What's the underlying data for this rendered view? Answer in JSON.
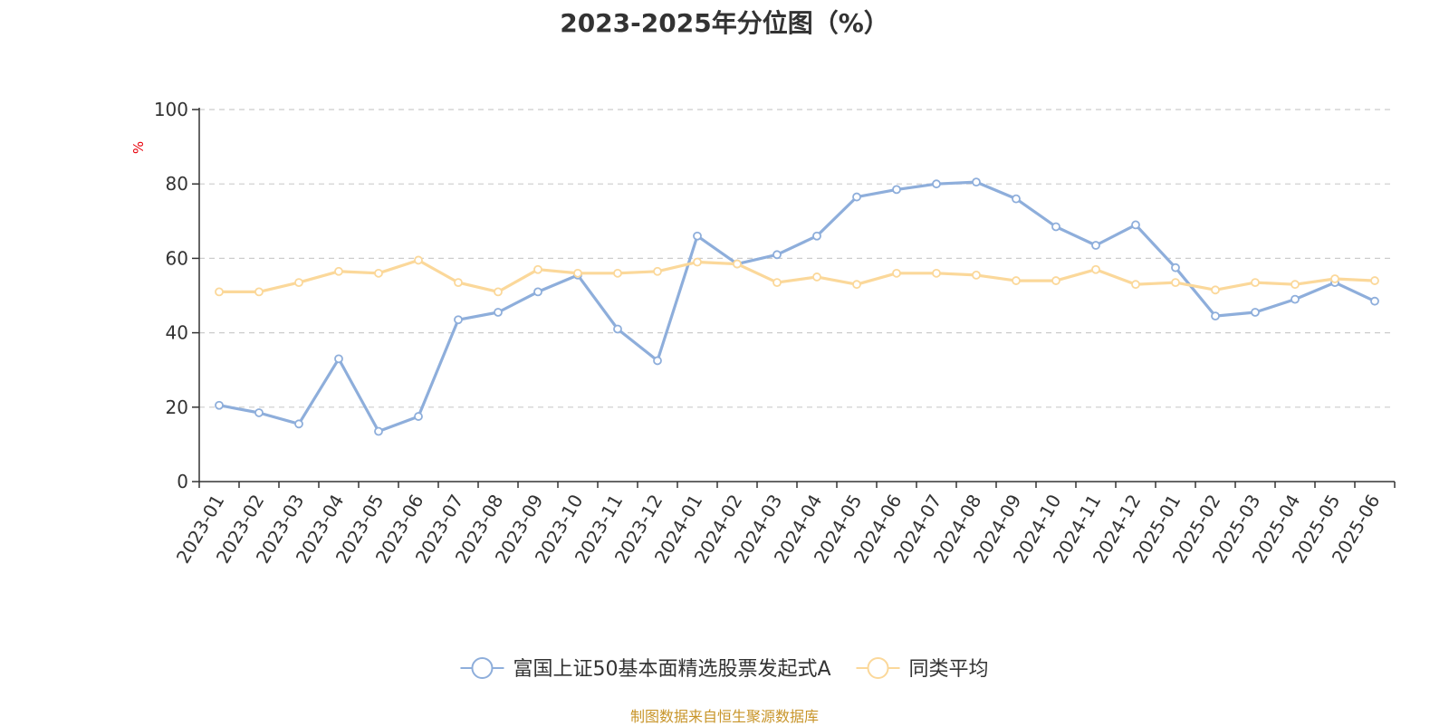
{
  "title": "2023-2025年分位图（%）",
  "source_note": "制图数据来自恒生聚源数据库",
  "colors": {
    "series_fund": "#8eaedb",
    "series_avg": "#fbd89a",
    "grid": "#cccccc",
    "axis": "#333333",
    "unit_label": "#e8000b",
    "source_note": "#c8952a",
    "title": "#333333"
  },
  "chart_data": {
    "type": "line",
    "title": "2023-2025年分位图（%）",
    "ylabel": "%",
    "xlabel": "",
    "ylim": [
      0,
      100
    ],
    "yticks": [
      0,
      20,
      40,
      60,
      80,
      100
    ],
    "grid": true,
    "legend_position": "bottom-center",
    "categories": [
      "2023-01",
      "2023-02",
      "2023-03",
      "2023-04",
      "2023-05",
      "2023-06",
      "2023-07",
      "2023-08",
      "2023-09",
      "2023-10",
      "2023-11",
      "2023-12",
      "2024-01",
      "2024-02",
      "2024-03",
      "2024-04",
      "2024-05",
      "2024-06",
      "2024-07",
      "2024-08",
      "2024-09",
      "2024-10",
      "2024-11",
      "2024-12",
      "2025-01",
      "2025-02",
      "2025-03",
      "2025-04",
      "2025-05",
      "2025-06"
    ],
    "series": [
      {
        "name": "富国上证50基本面精选股票发起式A",
        "values": [
          20.5,
          18.5,
          15.5,
          33,
          13.5,
          17.5,
          43.5,
          45.5,
          51,
          55.5,
          41,
          32.5,
          66,
          58.5,
          61,
          66,
          76.5,
          78.5,
          80,
          80.5,
          76,
          68.5,
          63.5,
          69,
          57.5,
          44.5,
          45.5,
          49,
          53.5,
          48.5
        ]
      },
      {
        "name": "同类平均",
        "values": [
          51,
          51,
          53.5,
          56.5,
          56,
          59.5,
          53.5,
          51,
          57,
          56,
          56,
          56.5,
          59,
          58.5,
          53.5,
          55,
          53,
          56,
          56,
          55.5,
          54,
          54,
          57,
          53,
          53.5,
          51.5,
          53.5,
          53,
          54.5,
          54
        ]
      }
    ]
  }
}
